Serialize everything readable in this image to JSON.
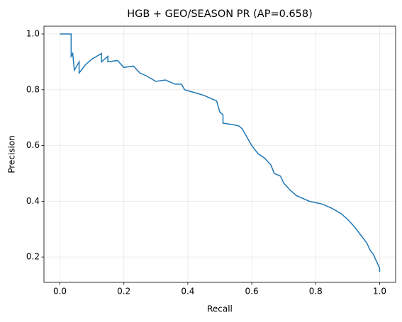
{
  "chart_data": {
    "type": "line",
    "title": "HGB + GEO/SEASON PR (AP=0.658)",
    "x_label": "Recall",
    "y_label": "Precision",
    "xlim": [
      -0.05,
      1.05
    ],
    "ylim": [
      0.109,
      1.028
    ],
    "xticks": [
      {
        "value": 0,
        "label": "0.0"
      },
      0.2,
      0.4,
      0.6,
      0.8,
      {
        "value": 1,
        "label": "1.0"
      }
    ],
    "yticks": [
      0.2,
      0.4,
      0.6,
      0.8,
      {
        "value": 1,
        "label": "1.0"
      }
    ],
    "grid": true,
    "series": [
      {
        "color": "#1f77b4",
        "x": [
          0,
          0.035,
          0.035,
          0.04,
          0.045,
          0.06,
          0.06,
          0.08,
          0.1,
          0.13,
          0.13,
          0.15,
          0.15,
          0.18,
          0.2,
          0.23,
          0.25,
          0.27,
          0.3,
          0.33,
          0.36,
          0.38,
          0.39,
          0.42,
          0.45,
          0.47,
          0.49,
          0.5,
          0.51,
          0.51,
          0.54,
          0.56,
          0.57,
          0.58,
          0.59,
          0.6,
          0.62,
          0.64,
          0.66,
          0.67,
          0.69,
          0.7,
          0.72,
          0.74,
          0.76,
          0.78,
          0.82,
          0.85,
          0.88,
          0.9,
          0.92,
          0.94,
          0.96,
          0.97,
          0.98,
          0.99,
          1.0,
          1.0
        ],
        "values": [
          1.0,
          1.0,
          0.92,
          0.93,
          0.87,
          0.9,
          0.86,
          0.89,
          0.91,
          0.93,
          0.9,
          0.92,
          0.9,
          0.905,
          0.88,
          0.885,
          0.86,
          0.85,
          0.83,
          0.835,
          0.82,
          0.82,
          0.8,
          0.79,
          0.78,
          0.77,
          0.76,
          0.72,
          0.71,
          0.68,
          0.675,
          0.67,
          0.66,
          0.64,
          0.62,
          0.6,
          0.57,
          0.555,
          0.53,
          0.5,
          0.49,
          0.465,
          0.44,
          0.42,
          0.41,
          0.4,
          0.39,
          0.375,
          0.355,
          0.335,
          0.31,
          0.28,
          0.25,
          0.225,
          0.21,
          0.185,
          0.16,
          0.147
        ]
      }
    ]
  }
}
